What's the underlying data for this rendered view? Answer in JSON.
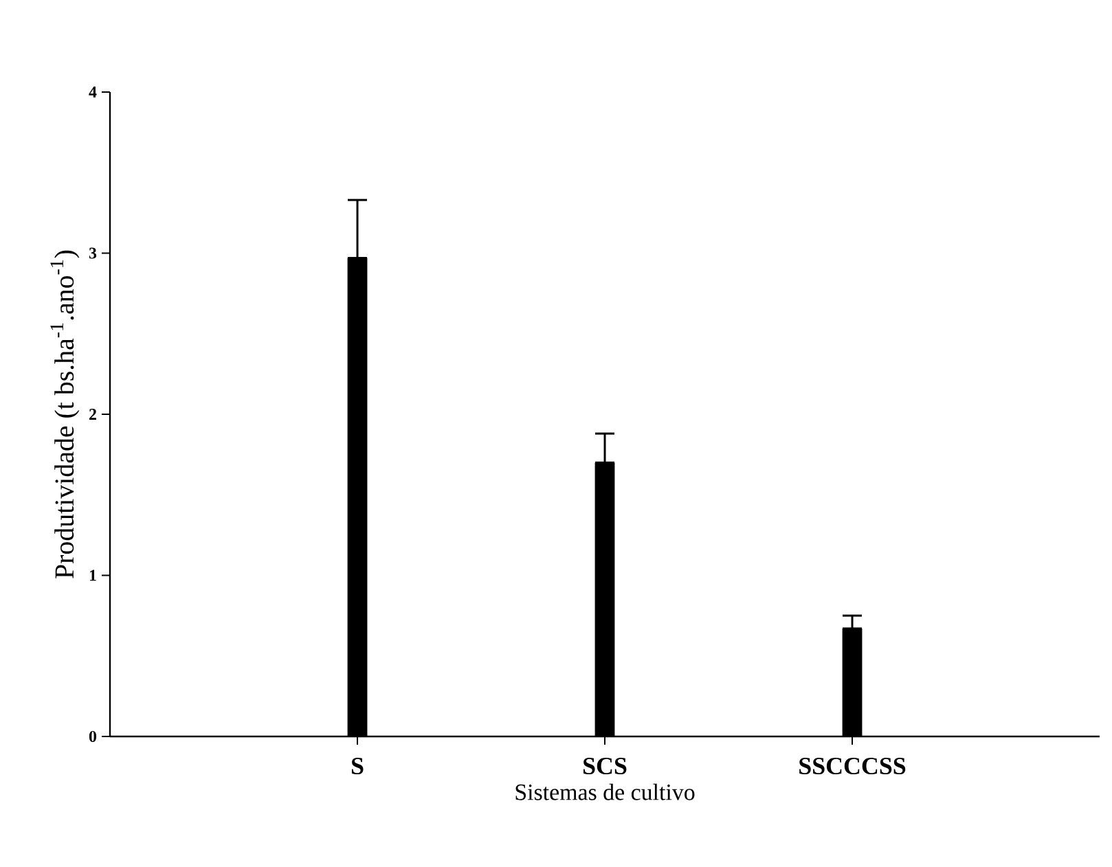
{
  "chart_data": {
    "type": "bar",
    "categories": [
      "S",
      "SCS",
      "SSCCCSS"
    ],
    "values": [
      2.97,
      1.7,
      0.67
    ],
    "errors": [
      [
        2.97,
        3.33
      ],
      [
        1.7,
        1.88
      ],
      [
        0.67,
        0.75
      ]
    ],
    "color": "#000000",
    "xlabel": "Sistemas de cultivo",
    "ylabel": "Produtividade (t bs.ha$^{-1}$.ano$^{-1}$)",
    "ylim": [
      0,
      4
    ],
    "yticks": [
      0,
      1,
      2,
      3,
      4
    ],
    "grid": false
  }
}
